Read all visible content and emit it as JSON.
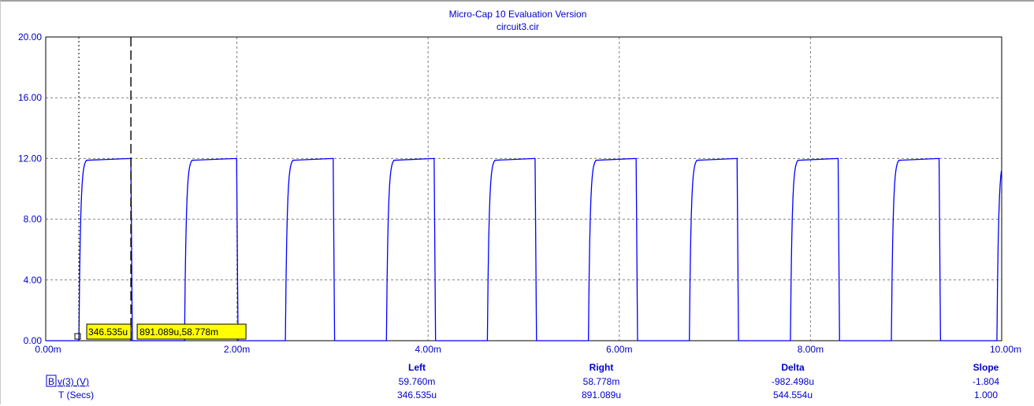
{
  "window": {
    "title": "Micro-Cap 10 Evaluation Version",
    "file": "circuit3.cir"
  },
  "chart_data": {
    "type": "line",
    "xlabel": "",
    "ylabel": "",
    "xlim": [
      0,
      10.0
    ],
    "ylim": [
      0,
      20.0
    ],
    "x_unit": "ms",
    "grid": true,
    "y_ticks": [
      0,
      4,
      8,
      12,
      16,
      20
    ],
    "y_tick_labels": [
      "0.00",
      "4.00",
      "8.00",
      "12.00",
      "16.00",
      "20.00"
    ],
    "x_ticks": [
      0,
      2,
      4,
      6,
      8,
      10
    ],
    "x_tick_labels": [
      "0.00m",
      "2.00m",
      "4.00m",
      "6.00m",
      "8.00m",
      "10.00m"
    ],
    "series": [
      {
        "name": "v(3) (V)",
        "color": "#0000ff",
        "description_pulses": "square wave, 12 V high, rise/fall RC-shaped",
        "pulses": [
          {
            "rise": 0.347,
            "fall": 0.891
          },
          {
            "rise": 1.452,
            "fall": 1.997
          },
          {
            "rise": 2.507,
            "fall": 3.007
          },
          {
            "rise": 3.564,
            "fall": 4.063
          },
          {
            "rise": 4.62,
            "fall": 5.119
          },
          {
            "rise": 5.677,
            "fall": 6.176
          },
          {
            "rise": 6.733,
            "fall": 7.232
          },
          {
            "rise": 7.79,
            "fall": 8.289
          },
          {
            "rise": 8.846,
            "fall": 9.345
          },
          {
            "rise": 9.95,
            "fall": 10.0
          }
        ],
        "high": 12.0,
        "low": 0.0
      }
    ],
    "cursors": {
      "left": {
        "x": 0.346535,
        "label": "346.535u"
      },
      "right": {
        "x": 0.891089,
        "label": "891.089u,58.778m"
      }
    },
    "readout": {
      "headers": [
        "Left",
        "Right",
        "Delta",
        "Slope"
      ],
      "rows": [
        {
          "label": "v(3) (V)",
          "marker": "B",
          "values": [
            "59.760m",
            "58.778m",
            "-982.498u",
            "-1.804"
          ]
        },
        {
          "label": "T (Secs)",
          "marker": "",
          "values": [
            "346.535u",
            "891.089u",
            "544.554u",
            "1.000"
          ]
        }
      ]
    }
  },
  "colors": {
    "trace": "#0000ff",
    "text": "#0000cc",
    "grid": "#808080",
    "cursor_label_bg": "#ffff00"
  }
}
